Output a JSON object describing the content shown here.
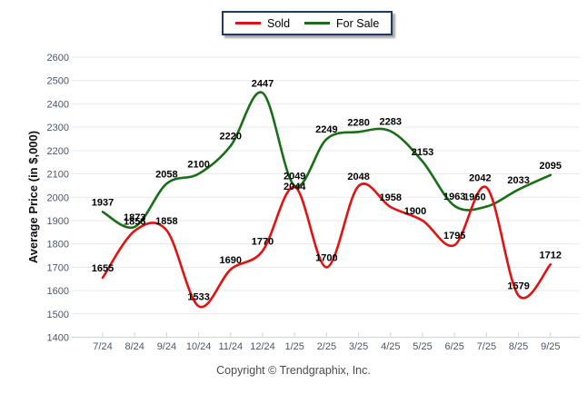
{
  "chart_data": {
    "type": "line",
    "categories": [
      "7/24",
      "8/24",
      "9/24",
      "10/24",
      "11/24",
      "12/24",
      "1/25",
      "2/25",
      "3/25",
      "4/25",
      "5/25",
      "6/25",
      "7/25",
      "8/25",
      "9/25"
    ],
    "series": [
      {
        "name": "Sold",
        "color": "#e01212",
        "values": [
          1655,
          1856,
          1858,
          1533,
          1690,
          1770,
          2044,
          1700,
          2048,
          1958,
          1900,
          1795,
          2042,
          1579,
          1712
        ]
      },
      {
        "name": "For Sale",
        "color": "#186f18",
        "values": [
          1937,
          1873,
          2058,
          2100,
          2220,
          2447,
          2049,
          2249,
          2280,
          2283,
          2153,
          1963,
          1960,
          2033,
          2095
        ]
      }
    ],
    "title": "",
    "xlabel": "",
    "ylabel": "Average Price (in $,000)",
    "ylim": [
      1400,
      2600
    ],
    "yticks": [
      1400,
      1500,
      1600,
      1700,
      1800,
      1900,
      2000,
      2100,
      2200,
      2300,
      2400,
      2500,
      2600
    ],
    "grid": true,
    "data_labels": true,
    "legend_position": "top-center"
  },
  "colors": {
    "grid": "#e9e9e9",
    "axis_line": "#d8d8d8",
    "tick_mark": "#d4d4d4",
    "tick_label": "#4c5665",
    "data_label": "#000000",
    "axis_title": "#111111",
    "legend_border": "#1e3a5f"
  },
  "footer": {
    "copyright": "Copyright © Trendgraphix, Inc."
  }
}
